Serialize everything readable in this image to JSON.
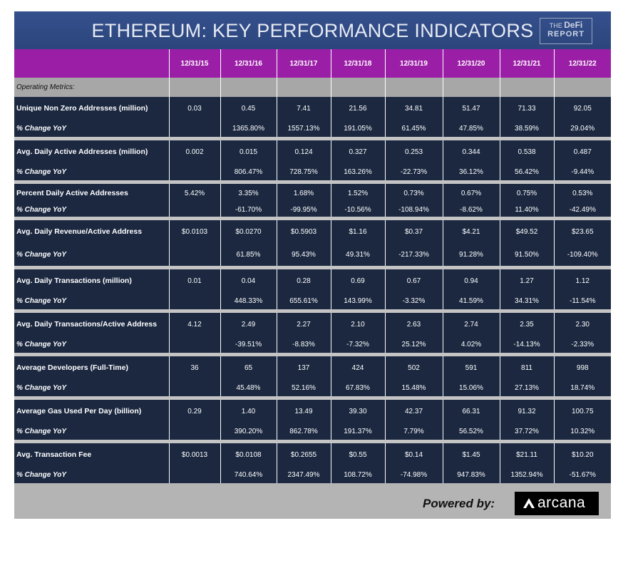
{
  "title": "ETHEREUM: KEY PERFORMANCE INDICATORS",
  "logo": {
    "line1_a": "THE",
    "line1_b": "DeFi",
    "line2": "REPORT"
  },
  "dates": [
    "12/31/15",
    "12/31/16",
    "12/31/17",
    "12/31/18",
    "12/31/19",
    "12/31/20",
    "12/31/21",
    "12/31/22"
  ],
  "section_label": "Operating Metrics:",
  "metrics": [
    {
      "label": "Unique Non Zero Addresses (million)",
      "values": [
        "0.03",
        "0.45",
        "7.41",
        "21.56",
        "34.81",
        "51.47",
        "71.33",
        "92.05"
      ],
      "change_label": "% Change YoY",
      "changes": [
        "",
        "1365.80%",
        "1557.13%",
        "191.05%",
        "61.45%",
        "47.85%",
        "38.59%",
        "29.04%"
      ]
    },
    {
      "label": "Avg. Daily Active Addresses (million)",
      "values": [
        "0.002",
        "0.015",
        "0.124",
        "0.327",
        "0.253",
        "0.344",
        "0.538",
        "0.487"
      ],
      "change_label": "% Change YoY",
      "changes": [
        "",
        "806.47%",
        "728.75%",
        "163.26%",
        "-22.73%",
        "36.12%",
        "56.42%",
        "-9.44%"
      ]
    },
    {
      "label": "Percent Daily Active Addresses",
      "values": [
        "5.42%",
        "3.35%",
        "1.68%",
        "1.52%",
        "0.73%",
        "0.67%",
        "0.75%",
        "0.53%"
      ],
      "change_label": "% Change YoY",
      "changes": [
        "",
        "-61.70%",
        "-99.95%",
        "-10.56%",
        "-108.94%",
        "-8.62%",
        "11.40%",
        "-42.49%"
      ]
    },
    {
      "label": "Avg. Daily Revenue/Active Address",
      "values": [
        "$0.0103",
        "$0.0270",
        "$0.5903",
        "$1.16",
        "$0.37",
        "$4.21",
        "$49.52",
        "$23.65"
      ],
      "change_label": "% Change YoY",
      "changes": [
        "",
        "61.85%",
        "95.43%",
        "49.31%",
        "-217.33%",
        "91.28%",
        "91.50%",
        "-109.40%"
      ]
    },
    {
      "label": "Avg. Daily Transactions (million)",
      "values": [
        "0.01",
        "0.04",
        "0.28",
        "0.69",
        "0.67",
        "0.94",
        "1.27",
        "1.12"
      ],
      "change_label": "% Change YoY",
      "changes": [
        "",
        "448.33%",
        "655.61%",
        "143.99%",
        "-3.32%",
        "41.59%",
        "34.31%",
        "-11.54%"
      ]
    },
    {
      "label": "Avg. Daily Transactions/Active Address",
      "values": [
        "4.12",
        "2.49",
        "2.27",
        "2.10",
        "2.63",
        "2.74",
        "2.35",
        "2.30"
      ],
      "change_label": "% Change YoY",
      "changes": [
        "",
        "-39.51%",
        "-8.83%",
        "-7.32%",
        "25.12%",
        "4.02%",
        "-14.13%",
        "-2.33%"
      ]
    },
    {
      "label": "Average Developers (Full-Time)",
      "values": [
        "36",
        "65",
        "137",
        "424",
        "502",
        "591",
        "811",
        "998"
      ],
      "change_label": "% Change YoY",
      "changes": [
        "",
        "45.48%",
        "52.16%",
        "67.83%",
        "15.48%",
        "15.06%",
        "27.13%",
        "18.74%"
      ]
    },
    {
      "label": "Average Gas Used Per Day (billion)",
      "values": [
        "0.29",
        "1.40",
        "13.49",
        "39.30",
        "42.37",
        "66.31",
        "91.32",
        "100.75"
      ],
      "change_label": "% Change YoY",
      "changes": [
        "",
        "390.20%",
        "862.78%",
        "191.37%",
        "7.79%",
        "56.52%",
        "37.72%",
        "10.32%"
      ]
    },
    {
      "label": "Avg. Transaction Fee",
      "values": [
        "$0.0013",
        "$0.0108",
        "$0.2655",
        "$0.55",
        "$0.14",
        "$1.45",
        "$21.11",
        "$10.20"
      ],
      "change_label": "% Change YoY",
      "changes": [
        "",
        "740.64%",
        "2347.49%",
        "108.72%",
        "-74.98%",
        "947.83%",
        "1352.94%",
        "-51.67%"
      ]
    }
  ],
  "footer": {
    "powered_by": "Powered by:",
    "brand": "arcana"
  },
  "colors": {
    "title_bg": "#2f4a84",
    "header_bg": "#9b1fa6",
    "section_bg": "#a7a7a7",
    "row_bg": "#1b2840",
    "gap_bg": "#c4c4c4",
    "footer_bg": "#b4b4b4"
  }
}
